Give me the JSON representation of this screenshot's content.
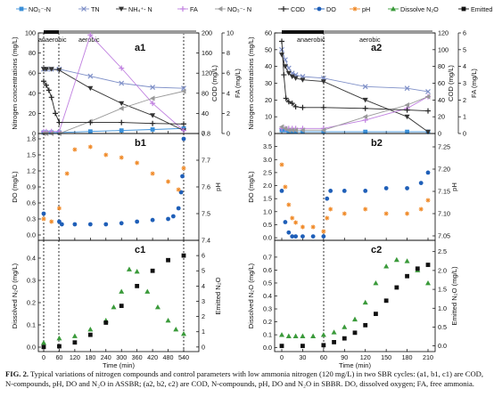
{
  "legend": [
    {
      "label": "NO₂⁻-N",
      "color": "#3a8fd8",
      "marker": "square"
    },
    {
      "label": "TN",
      "color": "#7f90c8",
      "marker": "x"
    },
    {
      "label": "NH₄⁺- N",
      "color": "#333333",
      "marker": "tri-down"
    },
    {
      "label": "FA",
      "color": "#c080e0",
      "marker": "plus"
    },
    {
      "label": "NO₃⁻- N",
      "color": "#999999",
      "marker": "tri-left"
    },
    {
      "label": "COD",
      "color": "#222222",
      "marker": "plus"
    },
    {
      "label": "DO",
      "color": "#1f5fb8",
      "marker": "circle"
    },
    {
      "label": "pH",
      "color": "#f08a28",
      "marker": "star"
    },
    {
      "label": "Dissolve N₂O",
      "color": "#3a9a3a",
      "marker": "tri-up"
    },
    {
      "label": "Emitted N₂O",
      "color": "#111111",
      "marker": "square"
    }
  ],
  "caption": {
    "lead": "FIG. 2.",
    "text": "Typical variations of nitrogen compounds and control parameters with low ammonia nitrogen (120 mg/L) in two SBR cycles: (a1, b1, c1) are COD, N-compounds, pH, DO and N₂O in ASSBR; (a2, b2, c2) are COD, N-compounds, pH, DO and N₂O in SBBR. DO, dissolved oxygen; FA, free ammonia."
  },
  "chart_data": [
    {
      "id": "a1",
      "type": "line",
      "panel_label": "a1",
      "phase_labels": [
        "anaerobic",
        "aerobic"
      ],
      "xlim": [
        -20,
        550
      ],
      "ylim": [
        0,
        100
      ],
      "y2lim": [
        0,
        200
      ],
      "y3lim": [
        0,
        10
      ],
      "ylabel": "Nitrogen concentrations (mg/L)",
      "y2label": "COD (mg/L)",
      "y3label": "FA (mg/L)",
      "yticks": [
        0,
        20,
        40,
        60,
        80,
        100
      ],
      "y2ticks": [
        0,
        40,
        80,
        120,
        160,
        200
      ],
      "y3ticks": [
        0,
        2,
        4,
        6,
        8,
        10
      ],
      "series": [
        {
          "name": "NO₂⁻-N",
          "axis": "y",
          "x": [
            0,
            10,
            30,
            60,
            180,
            300,
            420,
            540
          ],
          "y": [
            1,
            1,
            1,
            1,
            2,
            3,
            4,
            5
          ]
        },
        {
          "name": "TN",
          "axis": "y",
          "x": [
            0,
            10,
            30,
            60,
            180,
            300,
            420,
            540
          ],
          "y": [
            64,
            64,
            64,
            64,
            57,
            50,
            46,
            45
          ]
        },
        {
          "name": "NH₄⁺- N",
          "axis": "y",
          "x": [
            0,
            10,
            30,
            60,
            180,
            300,
            420,
            540
          ],
          "y": [
            64,
            64,
            64,
            63,
            45,
            30,
            18,
            3
          ]
        },
        {
          "name": "FA",
          "axis": "y3",
          "x": [
            0,
            10,
            30,
            60,
            180,
            300,
            420,
            540
          ],
          "y": [
            0.2,
            0.2,
            0.2,
            0.2,
            9.8,
            6.5,
            3.0,
            0.3
          ]
        },
        {
          "name": "NO₃⁻- N",
          "axis": "y",
          "x": [
            0,
            10,
            30,
            60,
            180,
            300,
            420,
            540
          ],
          "y": [
            0,
            0,
            0,
            0,
            12,
            25,
            35,
            42
          ]
        },
        {
          "name": "COD",
          "axis": "y2",
          "x": [
            0,
            10,
            20,
            30,
            45,
            60,
            180,
            300,
            420,
            540
          ],
          "y": [
            104,
            96,
            86,
            72,
            40,
            22,
            22,
            22,
            20,
            19
          ]
        }
      ]
    },
    {
      "id": "b1",
      "type": "scatter",
      "panel_label": "b1",
      "xlim": [
        -20,
        550
      ],
      "ylim": [
        -0.1,
        1.9
      ],
      "y2lim": [
        7.4,
        7.8
      ],
      "ylabel": "DO (mg/L)",
      "y2label": "pH",
      "yticks": [
        0.0,
        0.3,
        0.6,
        0.9,
        1.2,
        1.5,
        1.8
      ],
      "y2ticks": [
        7.4,
        7.5,
        7.6,
        7.7,
        7.8
      ],
      "series": [
        {
          "name": "DO",
          "axis": "y",
          "x": [
            0,
            60,
            70,
            120,
            180,
            240,
            300,
            360,
            420,
            480,
            500,
            520,
            530,
            535,
            540
          ],
          "y": [
            0.4,
            0.25,
            0.2,
            0.2,
            0.2,
            0.2,
            0.22,
            0.25,
            0.28,
            0.3,
            0.35,
            0.5,
            0.8,
            1.1,
            1.8
          ]
        },
        {
          "name": "pH",
          "axis": "y2",
          "x": [
            0,
            30,
            60,
            90,
            120,
            180,
            240,
            300,
            360,
            420,
            480,
            520,
            540
          ],
          "y": [
            7.48,
            7.47,
            7.52,
            7.65,
            7.74,
            7.75,
            7.72,
            7.71,
            7.69,
            7.65,
            7.62,
            7.59,
            7.67
          ]
        }
      ]
    },
    {
      "id": "c1",
      "type": "scatter",
      "panel_label": "c1",
      "xlim": [
        -20,
        550
      ],
      "ylim": [
        -0.02,
        0.48
      ],
      "y2lim": [
        -0.3,
        7.0
      ],
      "xlabel": "Time (min)",
      "ylabel": "Dissolved N₂O (mg/L)",
      "y2label": "Emitted N₂O",
      "xticks": [
        0,
        60,
        120,
        180,
        240,
        300,
        360,
        420,
        480,
        540
      ],
      "yticks": [
        0.0,
        0.1,
        0.2,
        0.3,
        0.4
      ],
      "y2ticks": [
        0,
        1,
        2,
        3,
        4,
        5,
        6
      ],
      "series": [
        {
          "name": "Dissolve N₂O",
          "axis": "y",
          "x": [
            0,
            60,
            120,
            180,
            240,
            270,
            300,
            330,
            360,
            400,
            440,
            480,
            510,
            540
          ],
          "y": [
            0.02,
            0.04,
            0.05,
            0.08,
            0.12,
            0.18,
            0.25,
            0.35,
            0.34,
            0.25,
            0.18,
            0.12,
            0.08,
            0.06
          ]
        },
        {
          "name": "Emitted N₂O",
          "axis": "y2",
          "x": [
            0,
            60,
            120,
            180,
            240,
            300,
            360,
            420,
            480,
            540
          ],
          "y": [
            0.0,
            0.05,
            0.3,
            0.8,
            1.6,
            2.7,
            4.0,
            5.0,
            5.7,
            6.0
          ]
        }
      ]
    },
    {
      "id": "a2",
      "type": "line",
      "panel_label": "a2",
      "phase_labels": [
        "anaerobic",
        "aerobic"
      ],
      "xlim": [
        -5,
        215
      ],
      "ylim": [
        0,
        60
      ],
      "y2lim": [
        0,
        120
      ],
      "y3lim": [
        0,
        6
      ],
      "ylabel": "Nitrogen concentrations (mg/L)",
      "y2label": "COD (mg/L)",
      "y3label": "FA (mg/L)",
      "yticks": [
        0,
        10,
        20,
        30,
        40,
        50,
        60
      ],
      "y2ticks": [
        0,
        20,
        40,
        60,
        80,
        100,
        120
      ],
      "y3ticks": [
        0,
        1,
        2,
        3,
        4,
        5,
        6
      ],
      "series": [
        {
          "name": "NO₂⁻-N",
          "axis": "y",
          "x": [
            0,
            5,
            10,
            15,
            20,
            30,
            60,
            120,
            180,
            210
          ],
          "y": [
            2,
            2,
            1.5,
            1.2,
            1,
            1,
            1,
            1,
            1,
            1
          ]
        },
        {
          "name": "TN",
          "axis": "y",
          "x": [
            0,
            5,
            10,
            15,
            20,
            30,
            60,
            120,
            180,
            210
          ],
          "y": [
            50,
            44,
            39,
            36,
            35,
            34,
            33,
            28,
            27,
            25
          ]
        },
        {
          "name": "NH₄⁺- N",
          "axis": "y",
          "x": [
            0,
            5,
            10,
            15,
            20,
            30,
            60,
            120,
            180,
            210
          ],
          "y": [
            47,
            40,
            36,
            34,
            33,
            32,
            31,
            20,
            10,
            1
          ]
        },
        {
          "name": "FA",
          "axis": "y3",
          "x": [
            0,
            5,
            10,
            15,
            20,
            30,
            60,
            120,
            180,
            210
          ],
          "y": [
            0.3,
            0.3,
            0.3,
            0.3,
            0.3,
            0.3,
            0.3,
            0.8,
            1.5,
            2.2
          ]
        },
        {
          "name": "NO₃⁻- N",
          "axis": "y",
          "x": [
            0,
            5,
            10,
            15,
            20,
            30,
            60,
            120,
            180,
            210
          ],
          "y": [
            4,
            3,
            2,
            2,
            2,
            2,
            2,
            10,
            17,
            22
          ]
        },
        {
          "name": "COD",
          "axis": "y2",
          "x": [
            0,
            3,
            6,
            10,
            15,
            20,
            30,
            60,
            120,
            180,
            210
          ],
          "y": [
            110,
            70,
            42,
            38,
            36,
            32,
            31,
            31,
            30,
            28,
            27
          ]
        }
      ]
    },
    {
      "id": "b2",
      "type": "scatter",
      "panel_label": "b2",
      "xlim": [
        -5,
        215
      ],
      "ylim": [
        -0.1,
        4.0
      ],
      "y2lim": [
        7.04,
        7.28
      ],
      "ylabel": "DO (mg/L)",
      "y2label": "pH",
      "yticks": [
        0.0,
        0.5,
        1.0,
        1.5,
        2.0,
        2.5,
        3.0,
        3.5
      ],
      "y2ticks": [
        7.05,
        7.1,
        7.15,
        7.2,
        7.25
      ],
      "series": [
        {
          "name": "DO",
          "axis": "y",
          "x": [
            0,
            5,
            10,
            15,
            20,
            30,
            45,
            60,
            65,
            70,
            90,
            120,
            150,
            180,
            200,
            210
          ],
          "y": [
            1.8,
            0.6,
            0.2,
            0.05,
            0.05,
            0.05,
            0.05,
            0.05,
            1.5,
            1.8,
            1.8,
            1.8,
            1.9,
            1.9,
            2.1,
            2.5
          ]
        },
        {
          "name": "pH",
          "axis": "y2",
          "x": [
            0,
            5,
            10,
            15,
            20,
            30,
            45,
            60,
            65,
            70,
            90,
            120,
            150,
            180,
            200,
            210
          ],
          "y": [
            7.21,
            7.16,
            7.12,
            7.09,
            7.08,
            7.07,
            7.07,
            7.06,
            7.09,
            7.11,
            7.1,
            7.11,
            7.1,
            7.1,
            7.11,
            7.13
          ]
        }
      ]
    },
    {
      "id": "c2",
      "type": "scatter",
      "panel_label": "c2",
      "xlim": [
        -5,
        215
      ],
      "ylim": [
        -0.03,
        0.83
      ],
      "y2lim": [
        -0.15,
        2.8
      ],
      "xlabel": "Time (min)",
      "ylabel": "Dissolved N₂O (mg/L)",
      "y2label": "Emitted N₂O (mg/L)",
      "xticks": [
        0,
        30,
        60,
        90,
        120,
        150,
        180,
        210
      ],
      "yticks": [
        0.0,
        0.1,
        0.2,
        0.3,
        0.4,
        0.5,
        0.6,
        0.7
      ],
      "y2ticks": [
        0.0,
        0.5,
        1.0,
        1.5,
        2.0,
        2.5
      ],
      "series": [
        {
          "name": "Dissolve N₂O",
          "axis": "y",
          "x": [
            0,
            10,
            20,
            30,
            45,
            60,
            75,
            90,
            105,
            120,
            135,
            150,
            165,
            180,
            195,
            210
          ],
          "y": [
            0.1,
            0.09,
            0.09,
            0.09,
            0.09,
            0.1,
            0.12,
            0.16,
            0.22,
            0.35,
            0.5,
            0.63,
            0.68,
            0.67,
            0.6,
            0.5
          ]
        },
        {
          "name": "Emitted N₂O",
          "axis": "y2",
          "x": [
            0,
            30,
            60,
            75,
            90,
            105,
            120,
            135,
            150,
            165,
            180,
            195,
            210
          ],
          "y": [
            0.0,
            0.0,
            0.02,
            0.1,
            0.2,
            0.35,
            0.55,
            0.85,
            1.2,
            1.55,
            1.85,
            2.05,
            2.15
          ]
        }
      ]
    }
  ]
}
